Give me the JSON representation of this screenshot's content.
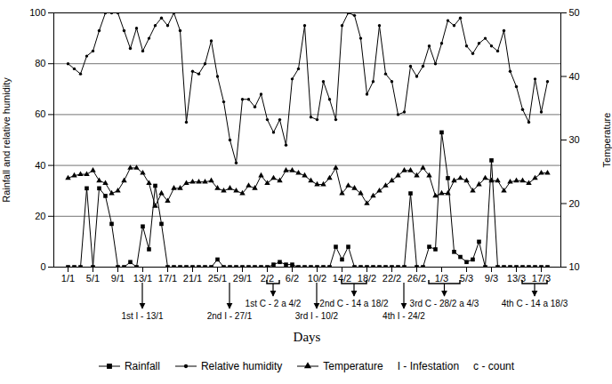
{
  "chart_data": {
    "type": "line",
    "x_label": "Days",
    "y_label": "Rainfall and relative humidity",
    "y2_label": "Temperature",
    "categories": [
      "1/1",
      null,
      null,
      null,
      "5/1",
      null,
      null,
      null,
      "9/1",
      null,
      null,
      null,
      "13/1",
      null,
      null,
      null,
      "17/1",
      null,
      null,
      null,
      "21/1",
      null,
      null,
      null,
      "25/1",
      null,
      null,
      null,
      "29/1",
      null,
      null,
      null,
      "2/2",
      null,
      null,
      null,
      "6/2",
      null,
      null,
      null,
      "10/2",
      null,
      null,
      null,
      "14/2",
      null,
      null,
      null,
      "18/2",
      null,
      null,
      null,
      "22/2",
      null,
      null,
      null,
      "26/2",
      null,
      null,
      null,
      "1/3",
      null,
      null,
      null,
      "5/3",
      null,
      null,
      null,
      "9/3",
      null,
      null,
      null,
      "13/3",
      null,
      null,
      null,
      "17/3",
      null
    ],
    "series": [
      {
        "name": "Rainfall",
        "color": "#000000",
        "marker": "square",
        "values": [
          0,
          0,
          0,
          31,
          0,
          31,
          28,
          17,
          0,
          0,
          2,
          0,
          16,
          7,
          32,
          17,
          0,
          0,
          0,
          0,
          0,
          0,
          0,
          0,
          3,
          0,
          0,
          0,
          0,
          0,
          0,
          0,
          0,
          1,
          2,
          1,
          1,
          0,
          0,
          0,
          0,
          0,
          0,
          8,
          3,
          8,
          0,
          0,
          0,
          0,
          0,
          0,
          0,
          0,
          0,
          29,
          0,
          0,
          8,
          7,
          53,
          35,
          6,
          4,
          2,
          3,
          10,
          0,
          42,
          0,
          0,
          0,
          0,
          0,
          0,
          0,
          0,
          0
        ]
      },
      {
        "name": "Relative humidity",
        "color": "#000000",
        "marker": "circle",
        "values": [
          80,
          78,
          76,
          83,
          85,
          93,
          100,
          100,
          100,
          93,
          86,
          94,
          85,
          90,
          95,
          98,
          95,
          100,
          93,
          57,
          77,
          76,
          80,
          89,
          75,
          65,
          50,
          41,
          66,
          66,
          63,
          68,
          58,
          53,
          58,
          48,
          74,
          78,
          95,
          59,
          58,
          73,
          66,
          58,
          95,
          100,
          99,
          90,
          68,
          73,
          95,
          76,
          73,
          60,
          61,
          79,
          75,
          79,
          87,
          80,
          88,
          97,
          95,
          98,
          87,
          84,
          88,
          90,
          87,
          85,
          93,
          77,
          71,
          62,
          57,
          74,
          61,
          73
        ]
      },
      {
        "name": "Temperature",
        "color": "#000000",
        "marker": "triangle",
        "axis": "y2",
        "values": [
          24,
          24.4,
          24.6,
          24.6,
          25.2,
          23.6,
          23.2,
          21.6,
          22,
          23.6,
          25.6,
          25.6,
          24.8,
          23.2,
          19.6,
          21.6,
          20.4,
          22.4,
          22.4,
          23.2,
          23.4,
          23.4,
          23.4,
          23.6,
          22.4,
          22,
          22.4,
          22,
          21.6,
          22.8,
          22.4,
          24.4,
          23.2,
          24,
          23.6,
          25.2,
          25.2,
          24.8,
          24.4,
          23.6,
          23,
          23,
          24,
          25.6,
          21.6,
          22.8,
          22.4,
          21.6,
          20,
          21.2,
          22,
          22.8,
          23.6,
          24.4,
          25.2,
          25.2,
          24.4,
          25.6,
          24.4,
          21.2,
          21.6,
          21.6,
          23.6,
          24,
          23.6,
          22,
          23,
          24,
          23.6,
          23.6,
          22,
          23.4,
          23.6,
          23.6,
          23.2,
          24,
          24.8,
          24.8
        ]
      }
    ],
    "ylim": [
      0,
      100
    ],
    "yticks": [
      0,
      20,
      40,
      60,
      80,
      100
    ],
    "y2lim": [
      10,
      50
    ],
    "y2ticks": [
      10,
      20,
      30,
      40,
      50
    ],
    "grid": true,
    "legend": "bottom",
    "annotations": [
      {
        "text": "1st I - 13/1",
        "x": 12
      },
      {
        "text": "2nd I - 27/1",
        "x": 26
      },
      {
        "text": "1st C - 2 a 4/2",
        "x": [
          32,
          34
        ]
      },
      {
        "text": "3rd I - 10/2",
        "x": 40
      },
      {
        "text": "2nd C - 14 a 18/2",
        "x": [
          44,
          48
        ]
      },
      {
        "text": "4th I - 24/2",
        "x": 54
      },
      {
        "text": "3rd C - 28/2 a 4/3",
        "x": [
          58,
          63
        ]
      },
      {
        "text": "4th C - 14 a 18/3",
        "x": [
          73,
          77
        ]
      }
    ],
    "legend_notes": [
      "I - Infestation",
      "c - count"
    ]
  }
}
